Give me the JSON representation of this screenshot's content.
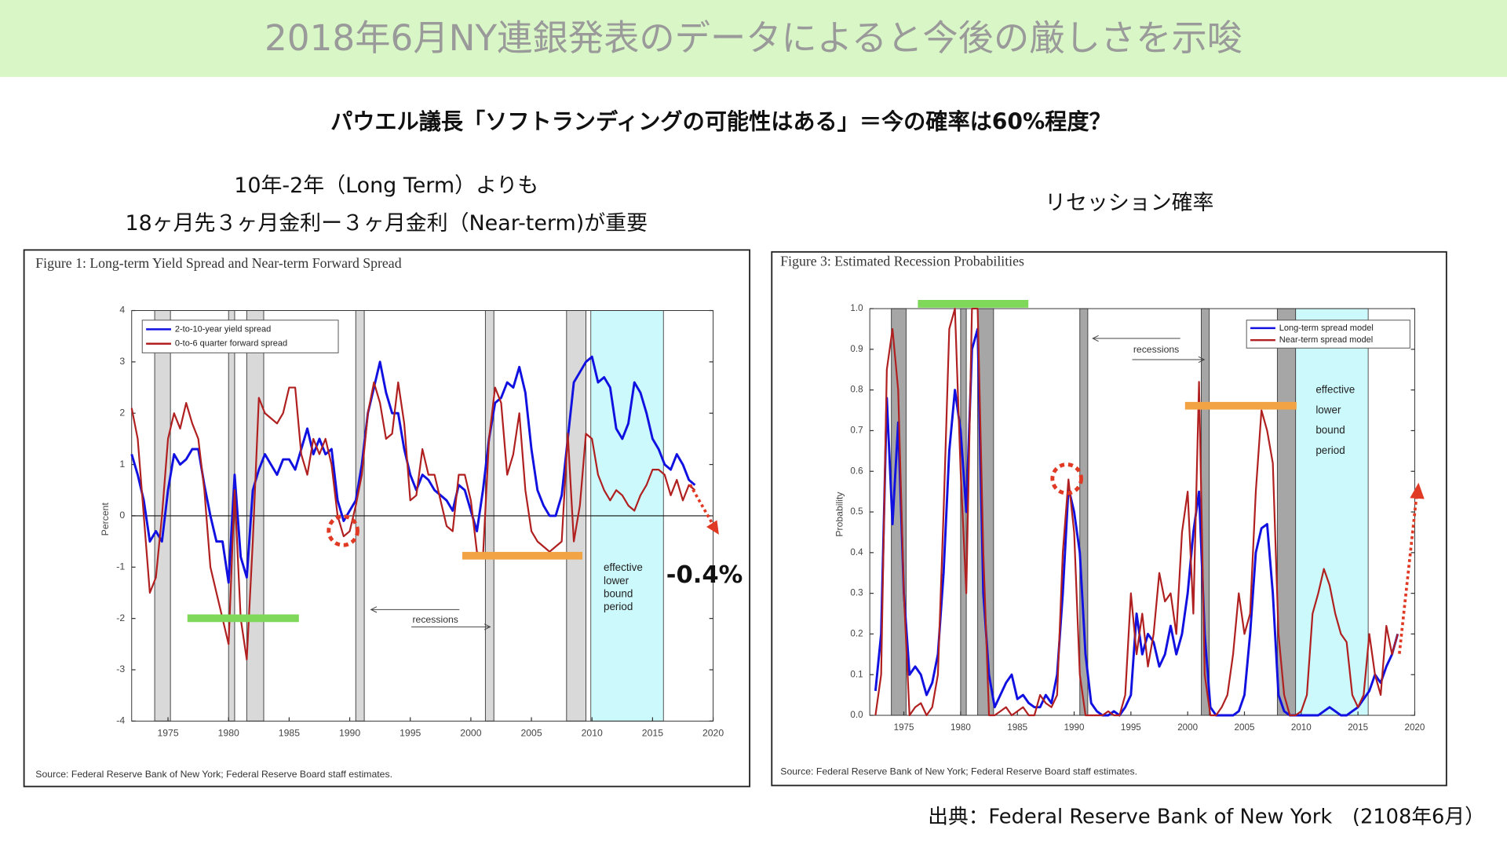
{
  "header": {
    "title": "2018年6月NY連銀発表のデータによると今後の厳しさを示唆"
  },
  "subtitle": "パウエル議長「ソフトランディングの可能性はある」＝今の確率は60%程度？",
  "left_caption": [
    "10年-2年（Long Term）よりも",
    "18ヶ月先３ヶ月金利ー３ヶ月金利（Near-term)が重要"
  ],
  "right_caption": "リセッション確率",
  "callout": "-0.4%",
  "credit": "出典：Federal Reserve Bank of New York　(2108年6月）",
  "chart_data": [
    {
      "type": "line",
      "title": "Figure 1: Long-term Yield Spread and Near-term Forward Spread",
      "y_label": "Percent",
      "source": "Source: Federal Reserve Bank of New York; Federal Reserve Board staff estimates.",
      "xlim": [
        1972,
        2020
      ],
      "xticks": [
        1975,
        1980,
        1985,
        1990,
        1995,
        2000,
        2005,
        2010,
        2015,
        2020
      ],
      "ylim": [
        -4,
        4
      ],
      "yticks": [
        -4,
        -3,
        -2,
        -1,
        0,
        1,
        2,
        3,
        4
      ],
      "zero_line": true,
      "recessions": [
        [
          1973.9,
          1975.2
        ],
        [
          1980,
          1980.5
        ],
        [
          1981.5,
          1982.9
        ],
        [
          1990.5,
          1991.2
        ],
        [
          2001.2,
          2001.9
        ],
        [
          2007.9,
          2009.5
        ]
      ],
      "recession_color": "#d9d9d9",
      "recession_label": "recessions",
      "elb": [
        2009.9,
        2015.9
      ],
      "elb_color": "#ccf9fb",
      "elb_label": [
        "effective",
        "lower",
        "bound",
        "period"
      ],
      "x": [
        1972,
        1972.5,
        1973,
        1973.5,
        1974,
        1974.5,
        1975,
        1975.5,
        1976,
        1976.5,
        1977,
        1977.5,
        1978,
        1978.5,
        1979,
        1979.5,
        1980,
        1980.5,
        1981,
        1981.5,
        1982,
        1982.5,
        1983,
        1983.5,
        1984,
        1984.5,
        1985,
        1985.5,
        1986,
        1986.5,
        1987,
        1987.5,
        1988,
        1988.5,
        1989,
        1989.5,
        1990,
        1990.5,
        1991,
        1991.5,
        1992,
        1992.5,
        1993,
        1993.5,
        1994,
        1994.5,
        1995,
        1995.5,
        1996,
        1996.5,
        1997,
        1997.5,
        1998,
        1998.5,
        1999,
        1999.5,
        2000,
        2000.5,
        2001,
        2001.5,
        2002,
        2002.5,
        2003,
        2003.5,
        2004,
        2004.5,
        2005,
        2005.5,
        2006,
        2006.5,
        2007,
        2007.5,
        2008,
        2008.5,
        2009,
        2009.5,
        2010,
        2010.5,
        2011,
        2011.5,
        2012,
        2012.5,
        2013,
        2013.5,
        2014,
        2014.5,
        2015,
        2015.5,
        2016,
        2016.5,
        2017,
        2017.5,
        2018,
        2018.5
      ],
      "series": [
        {
          "name": "2-to-10-year yield spread",
          "color": "#1010e0",
          "values": [
            1.2,
            0.8,
            0.3,
            -0.5,
            -0.3,
            -0.5,
            0.5,
            1.2,
            1.0,
            1.1,
            1.3,
            1.3,
            0.6,
            0.0,
            -0.5,
            -0.5,
            -1.3,
            0.8,
            -0.8,
            -1.2,
            0.5,
            0.9,
            1.2,
            1.0,
            0.8,
            1.1,
            1.1,
            0.9,
            1.3,
            1.7,
            1.2,
            1.5,
            1.2,
            1.3,
            0.3,
            -0.1,
            0.1,
            0.3,
            1.0,
            2.0,
            2.5,
            3.0,
            2.4,
            2.0,
            2.0,
            1.3,
            0.8,
            0.5,
            0.8,
            0.7,
            0.5,
            0.4,
            0.3,
            0.1,
            0.6,
            0.5,
            0.1,
            -0.3,
            0.5,
            1.5,
            2.2,
            2.3,
            2.6,
            2.5,
            2.9,
            2.4,
            1.3,
            0.5,
            0.2,
            0.0,
            0.0,
            0.4,
            1.5,
            2.6,
            2.8,
            3.0,
            3.1,
            2.6,
            2.7,
            2.5,
            1.7,
            1.5,
            1.8,
            2.6,
            2.4,
            2.0,
            1.5,
            1.3,
            1.0,
            0.9,
            1.2,
            1.0,
            0.7,
            0.6
          ]
        },
        {
          "name": "0-to-6 quarter forward spread",
          "color": "#b02020",
          "values": [
            2.1,
            1.5,
            0.0,
            -1.5,
            -1.2,
            0.0,
            1.5,
            2.0,
            1.7,
            2.2,
            1.8,
            1.5,
            0.5,
            -1.0,
            -1.5,
            -2.0,
            -2.5,
            0.5,
            -2.0,
            -2.8,
            -0.5,
            2.3,
            2.0,
            1.9,
            1.8,
            2.0,
            2.5,
            2.5,
            1.2,
            0.8,
            1.5,
            1.2,
            1.5,
            1.0,
            0.0,
            -0.4,
            -0.3,
            0.2,
            0.8,
            2.0,
            2.6,
            2.2,
            1.5,
            1.6,
            2.6,
            1.8,
            0.3,
            0.4,
            1.3,
            0.8,
            0.8,
            0.3,
            -0.2,
            -0.3,
            0.8,
            0.8,
            0.3,
            -0.7,
            -0.8,
            1.5,
            2.5,
            2.2,
            0.8,
            1.2,
            2.0,
            0.5,
            -0.3,
            -0.5,
            -0.6,
            -0.7,
            -0.6,
            -0.5,
            1.6,
            -0.5,
            0.2,
            1.6,
            1.5,
            0.8,
            0.5,
            0.3,
            0.5,
            0.4,
            0.2,
            0.1,
            0.4,
            0.6,
            0.9,
            0.9,
            0.8,
            0.4,
            0.7,
            0.3,
            0.6,
            0.5
          ]
        }
      ]
    },
    {
      "type": "line",
      "title": "Figure 3: Estimated Recession Probabilities",
      "y_label": "Probability",
      "source": "Source: Federal Reserve Bank of New York; Federal Reserve Board staff estimates.",
      "xlim": [
        1972,
        2020
      ],
      "xticks": [
        1975,
        1980,
        1985,
        1990,
        1995,
        2000,
        2005,
        2010,
        2015,
        2020
      ],
      "ylim": [
        0,
        1
      ],
      "yticks": [
        {
          "value": 0,
          "label": "0.0"
        },
        0.1,
        0.2,
        0.3,
        0.4,
        0.5,
        0.6,
        0.7,
        0.8,
        0.9,
        {
          "value": 1,
          "label": "1.0"
        }
      ],
      "zero_line": false,
      "recessions": [
        [
          1973.9,
          1975.2
        ],
        [
          1980,
          1980.5
        ],
        [
          1981.5,
          1982.9
        ],
        [
          1990.5,
          1991.2
        ],
        [
          2001.2,
          2001.9
        ],
        [
          2007.9,
          2009.5
        ]
      ],
      "recession_color": "#a6a6a6",
      "recession_label": "recessions",
      "elb": [
        2009.5,
        2015.9
      ],
      "elb_color": "#ccf9fb",
      "elb_label": [
        "effective",
        "lower",
        "bound",
        "period"
      ],
      "x": [
        1972.5,
        1973,
        1973.5,
        1974,
        1974.5,
        1975,
        1975.5,
        1976,
        1976.5,
        1977,
        1977.5,
        1978,
        1978.5,
        1979,
        1979.5,
        1980,
        1980.5,
        1981,
        1981.5,
        1982,
        1982.5,
        1983,
        1983.5,
        1984,
        1984.5,
        1985,
        1985.5,
        1986,
        1986.5,
        1987,
        1987.5,
        1988,
        1988.5,
        1989,
        1989.5,
        1990,
        1990.5,
        1991,
        1991.5,
        1992,
        1992.5,
        1993,
        1993.5,
        1994,
        1994.5,
        1995,
        1995.5,
        1996,
        1996.5,
        1997,
        1997.5,
        1998,
        1998.5,
        1999,
        1999.5,
        2000,
        2000.5,
        2001,
        2001.5,
        2002,
        2002.5,
        2003,
        2003.5,
        2004,
        2004.5,
        2005,
        2005.5,
        2006,
        2006.5,
        2007,
        2007.5,
        2008,
        2008.5,
        2009,
        2009.5,
        2010,
        2010.5,
        2011,
        2011.5,
        2012,
        2012.5,
        2013,
        2013.5,
        2014,
        2014.5,
        2015,
        2015.5,
        2016,
        2016.5,
        2017,
        2017.5,
        2018,
        2018.5
      ],
      "series": [
        {
          "name": "Long-term spread model",
          "color": "#1010e0",
          "values": [
            0.06,
            0.2,
            0.78,
            0.47,
            0.72,
            0.3,
            0.1,
            0.12,
            0.1,
            0.05,
            0.08,
            0.15,
            0.35,
            0.65,
            0.8,
            0.7,
            0.5,
            0.9,
            0.95,
            0.3,
            0.1,
            0.02,
            0.05,
            0.08,
            0.1,
            0.04,
            0.05,
            0.03,
            0.02,
            0.02,
            0.05,
            0.03,
            0.1,
            0.3,
            0.56,
            0.5,
            0.4,
            0.15,
            0.03,
            0.01,
            0.0,
            0.0,
            0.01,
            0.0,
            0.02,
            0.05,
            0.25,
            0.15,
            0.2,
            0.18,
            0.12,
            0.15,
            0.22,
            0.15,
            0.2,
            0.3,
            0.45,
            0.55,
            0.2,
            0.02,
            0.0,
            0.0,
            0.0,
            0.0,
            0.01,
            0.05,
            0.2,
            0.4,
            0.46,
            0.47,
            0.3,
            0.05,
            0.01,
            0.0,
            0.0,
            0.0,
            0.0,
            0.0,
            0.0,
            0.01,
            0.02,
            0.01,
            0.0,
            0.0,
            0.01,
            0.02,
            0.04,
            0.06,
            0.1,
            0.08,
            0.12,
            0.15,
            0.2
          ]
        },
        {
          "name": "Near-term spread model",
          "color": "#b02020",
          "values": [
            0.0,
            0.1,
            0.85,
            0.95,
            0.8,
            0.3,
            0.0,
            0.02,
            0.03,
            0.0,
            0.02,
            0.1,
            0.5,
            0.95,
            1.0,
            0.6,
            0.3,
            1.0,
            1.0,
            0.4,
            0.0,
            0.0,
            0.01,
            0.02,
            0.0,
            0.01,
            0.02,
            0.0,
            0.0,
            0.05,
            0.03,
            0.02,
            0.05,
            0.4,
            0.58,
            0.45,
            0.1,
            0.0,
            0.0,
            0.0,
            0.0,
            0.01,
            0.0,
            0.0,
            0.05,
            0.3,
            0.15,
            0.25,
            0.12,
            0.2,
            0.35,
            0.28,
            0.3,
            0.2,
            0.45,
            0.55,
            0.25,
            0.82,
            0.1,
            0.0,
            0.0,
            0.02,
            0.05,
            0.15,
            0.3,
            0.2,
            0.25,
            0.55,
            0.75,
            0.7,
            0.62,
            0.2,
            0.05,
            0.0,
            0.0,
            0.01,
            0.05,
            0.25,
            0.3,
            0.36,
            0.32,
            0.25,
            0.2,
            0.18,
            0.05,
            0.02,
            0.05,
            0.2,
            0.1,
            0.05,
            0.22,
            0.15,
            0.2
          ]
        }
      ]
    }
  ]
}
